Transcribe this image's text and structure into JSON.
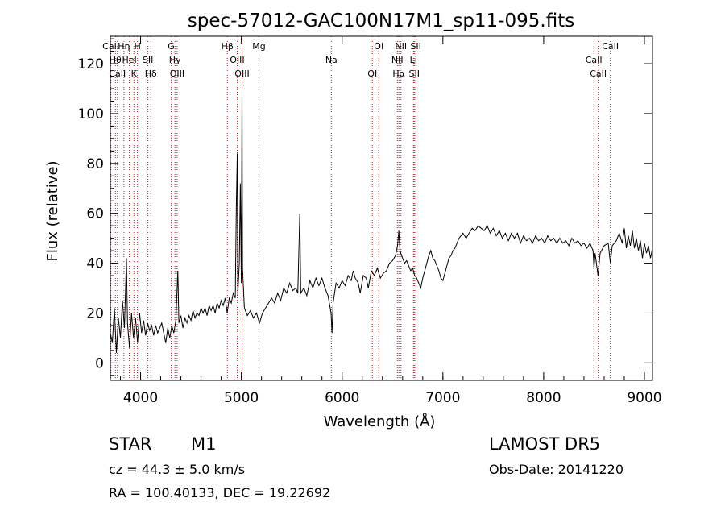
{
  "chart_data": {
    "type": "line",
    "title": "spec-57012-GAC100N17M1_sp11-095.fits",
    "xlabel": "Wavelength (Å)",
    "ylabel": "Flux (relative)",
    "xlim": [
      3700,
      9080
    ],
    "ylim": [
      -7,
      131
    ],
    "xticks": [
      "4000",
      "5000",
      "6000",
      "7000",
      "8000",
      "9000"
    ],
    "xtick_values": [
      4000,
      5000,
      6000,
      7000,
      8000,
      9000
    ],
    "yticks": [
      "0",
      "20",
      "40",
      "60",
      "80",
      "100",
      "120"
    ],
    "ytick_values": [
      0,
      20,
      40,
      60,
      80,
      100,
      120
    ],
    "series": [
      {
        "color": "#000000",
        "points": [
          [
            3700,
            12
          ],
          [
            3720,
            8
          ],
          [
            3740,
            22
          ],
          [
            3760,
            4
          ],
          [
            3780,
            18
          ],
          [
            3800,
            10
          ],
          [
            3820,
            25
          ],
          [
            3840,
            14
          ],
          [
            3860,
            42
          ],
          [
            3870,
            16
          ],
          [
            3890,
            6
          ],
          [
            3910,
            20
          ],
          [
            3930,
            10
          ],
          [
            3950,
            18
          ],
          [
            3970,
            8
          ],
          [
            3990,
            20
          ],
          [
            4010,
            12
          ],
          [
            4030,
            17
          ],
          [
            4050,
            11
          ],
          [
            4070,
            16
          ],
          [
            4090,
            13
          ],
          [
            4110,
            15
          ],
          [
            4130,
            11
          ],
          [
            4150,
            15
          ],
          [
            4170,
            12
          ],
          [
            4190,
            14
          ],
          [
            4210,
            16
          ],
          [
            4230,
            12
          ],
          [
            4250,
            8
          ],
          [
            4270,
            14
          ],
          [
            4290,
            10
          ],
          [
            4310,
            15
          ],
          [
            4330,
            12
          ],
          [
            4350,
            17
          ],
          [
            4370,
            37
          ],
          [
            4380,
            16
          ],
          [
            4400,
            19
          ],
          [
            4420,
            14
          ],
          [
            4440,
            18
          ],
          [
            4460,
            16
          ],
          [
            4480,
            19
          ],
          [
            4500,
            17
          ],
          [
            4520,
            21
          ],
          [
            4540,
            18
          ],
          [
            4560,
            20
          ],
          [
            4580,
            19
          ],
          [
            4600,
            22
          ],
          [
            4620,
            20
          ],
          [
            4640,
            22
          ],
          [
            4660,
            19
          ],
          [
            4680,
            23
          ],
          [
            4700,
            21
          ],
          [
            4720,
            23
          ],
          [
            4740,
            20
          ],
          [
            4760,
            24
          ],
          [
            4780,
            22
          ],
          [
            4800,
            25
          ],
          [
            4820,
            23
          ],
          [
            4840,
            26
          ],
          [
            4860,
            20
          ],
          [
            4880,
            26
          ],
          [
            4900,
            24
          ],
          [
            4920,
            28
          ],
          [
            4940,
            26
          ],
          [
            4950,
            63
          ],
          [
            4960,
            84
          ],
          [
            4965,
            27
          ],
          [
            4980,
            40
          ],
          [
            4990,
            72
          ],
          [
            5000,
            32
          ],
          [
            5007,
            110
          ],
          [
            5012,
            38
          ],
          [
            5030,
            22
          ],
          [
            5060,
            19
          ],
          [
            5090,
            21
          ],
          [
            5120,
            18
          ],
          [
            5150,
            20
          ],
          [
            5180,
            16
          ],
          [
            5210,
            20
          ],
          [
            5240,
            22
          ],
          [
            5270,
            24
          ],
          [
            5300,
            26
          ],
          [
            5330,
            24
          ],
          [
            5360,
            28
          ],
          [
            5390,
            25
          ],
          [
            5420,
            30
          ],
          [
            5450,
            28
          ],
          [
            5480,
            32
          ],
          [
            5510,
            29
          ],
          [
            5540,
            30
          ],
          [
            5560,
            28
          ],
          [
            5580,
            60
          ],
          [
            5590,
            28
          ],
          [
            5620,
            30
          ],
          [
            5650,
            27
          ],
          [
            5680,
            33
          ],
          [
            5710,
            30
          ],
          [
            5740,
            34
          ],
          [
            5770,
            31
          ],
          [
            5800,
            34
          ],
          [
            5830,
            30
          ],
          [
            5860,
            27
          ],
          [
            5890,
            20
          ],
          [
            5900,
            12
          ],
          [
            5910,
            24
          ],
          [
            5940,
            32
          ],
          [
            5970,
            30
          ],
          [
            6000,
            33
          ],
          [
            6030,
            31
          ],
          [
            6060,
            35
          ],
          [
            6090,
            33
          ],
          [
            6110,
            37
          ],
          [
            6130,
            34
          ],
          [
            6160,
            32
          ],
          [
            6180,
            28
          ],
          [
            6210,
            35
          ],
          [
            6240,
            34
          ],
          [
            6260,
            30
          ],
          [
            6290,
            37
          ],
          [
            6320,
            35
          ],
          [
            6350,
            38
          ],
          [
            6380,
            34
          ],
          [
            6410,
            36
          ],
          [
            6440,
            37
          ],
          [
            6470,
            40
          ],
          [
            6500,
            41
          ],
          [
            6530,
            43
          ],
          [
            6550,
            47
          ],
          [
            6563,
            53
          ],
          [
            6575,
            45
          ],
          [
            6600,
            42
          ],
          [
            6620,
            40
          ],
          [
            6640,
            41
          ],
          [
            6660,
            39
          ],
          [
            6680,
            37
          ],
          [
            6700,
            38
          ],
          [
            6720,
            35
          ],
          [
            6740,
            34
          ],
          [
            6760,
            32
          ],
          [
            6780,
            30
          ],
          [
            6800,
            34
          ],
          [
            6820,
            37
          ],
          [
            6840,
            40
          ],
          [
            6860,
            43
          ],
          [
            6880,
            45
          ],
          [
            6900,
            42
          ],
          [
            6920,
            41
          ],
          [
            6940,
            39
          ],
          [
            6960,
            37
          ],
          [
            6980,
            34
          ],
          [
            7000,
            33
          ],
          [
            7020,
            36
          ],
          [
            7040,
            39
          ],
          [
            7060,
            42
          ],
          [
            7080,
            43
          ],
          [
            7100,
            45
          ],
          [
            7120,
            46
          ],
          [
            7140,
            48
          ],
          [
            7160,
            50
          ],
          [
            7180,
            51
          ],
          [
            7200,
            52
          ],
          [
            7230,
            50
          ],
          [
            7260,
            52
          ],
          [
            7290,
            54
          ],
          [
            7320,
            53
          ],
          [
            7350,
            55
          ],
          [
            7380,
            54
          ],
          [
            7410,
            53
          ],
          [
            7440,
            55
          ],
          [
            7470,
            52
          ],
          [
            7500,
            54
          ],
          [
            7530,
            51
          ],
          [
            7560,
            53
          ],
          [
            7590,
            50
          ],
          [
            7620,
            52
          ],
          [
            7650,
            49
          ],
          [
            7680,
            52
          ],
          [
            7710,
            50
          ],
          [
            7740,
            52
          ],
          [
            7770,
            48
          ],
          [
            7800,
            51
          ],
          [
            7830,
            49
          ],
          [
            7860,
            50
          ],
          [
            7890,
            48
          ],
          [
            7920,
            51
          ],
          [
            7950,
            49
          ],
          [
            7980,
            50
          ],
          [
            8010,
            48
          ],
          [
            8040,
            51
          ],
          [
            8070,
            49
          ],
          [
            8100,
            50
          ],
          [
            8130,
            48
          ],
          [
            8160,
            50
          ],
          [
            8190,
            48
          ],
          [
            8220,
            49
          ],
          [
            8250,
            47
          ],
          [
            8280,
            50
          ],
          [
            8310,
            48
          ],
          [
            8340,
            49
          ],
          [
            8370,
            47
          ],
          [
            8400,
            48
          ],
          [
            8430,
            46
          ],
          [
            8460,
            48
          ],
          [
            8490,
            45
          ],
          [
            8500,
            38
          ],
          [
            8510,
            44
          ],
          [
            8540,
            35
          ],
          [
            8560,
            44
          ],
          [
            8600,
            47
          ],
          [
            8640,
            48
          ],
          [
            8662,
            40
          ],
          [
            8680,
            47
          ],
          [
            8720,
            49
          ],
          [
            8750,
            52
          ],
          [
            8780,
            48
          ],
          [
            8800,
            54
          ],
          [
            8820,
            46
          ],
          [
            8840,
            51
          ],
          [
            8860,
            47
          ],
          [
            8880,
            53
          ],
          [
            8900,
            46
          ],
          [
            8920,
            50
          ],
          [
            8940,
            45
          ],
          [
            8960,
            49
          ],
          [
            8980,
            42
          ],
          [
            9000,
            48
          ],
          [
            9020,
            44
          ],
          [
            9040,
            47
          ],
          [
            9060,
            42
          ],
          [
            9080,
            46
          ]
        ]
      }
    ],
    "lines": [
      {
        "x": 3705,
        "label": "CaII"
      },
      {
        "x": 3750,
        "label": "Hθ"
      },
      {
        "x": 3770,
        "label": "CaII"
      },
      {
        "x": 3835,
        "label": "Hη"
      },
      {
        "x": 3889,
        "label": "HeI"
      },
      {
        "x": 3934,
        "label": "K"
      },
      {
        "x": 3969,
        "label": "H"
      },
      {
        "x": 4073,
        "label": "SII"
      },
      {
        "x": 4102,
        "label": "Hδ"
      },
      {
        "x": 4304,
        "label": "G"
      },
      {
        "x": 4341,
        "label": "Hγ"
      },
      {
        "x": 4363,
        "label": "OIII"
      },
      {
        "x": 4861,
        "label": "Hβ"
      },
      {
        "x": 4959,
        "label": "OIII"
      },
      {
        "x": 5007,
        "label": "OIII"
      },
      {
        "x": 5175,
        "label": "Mg"
      },
      {
        "x": 5893,
        "label": "Na"
      },
      {
        "x": 6300,
        "label": "OI"
      },
      {
        "x": 6364,
        "label": "OI"
      },
      {
        "x": 6548,
        "label": "NII"
      },
      {
        "x": 6563,
        "label": "Hα"
      },
      {
        "x": 6584,
        "label": "NII"
      },
      {
        "x": 6708,
        "label": "Li"
      },
      {
        "x": 6716,
        "label": "SII"
      },
      {
        "x": 6731,
        "label": "SII"
      },
      {
        "x": 8498,
        "label": "CaII"
      },
      {
        "x": 8542,
        "label": "CaII"
      },
      {
        "x": 8662,
        "label": "CaII"
      }
    ],
    "line_color": "#b22222",
    "grid": false
  },
  "footer": {
    "class_label": "STAR",
    "subclass_label": "M1",
    "survey_label": "LAMOST DR5",
    "cz_label": "cz = 44.3 ± 5.0 km/s",
    "obs_date_label": "Obs-Date: 20141220",
    "coords_label": "RA = 100.40133, DEC =  19.22692"
  }
}
